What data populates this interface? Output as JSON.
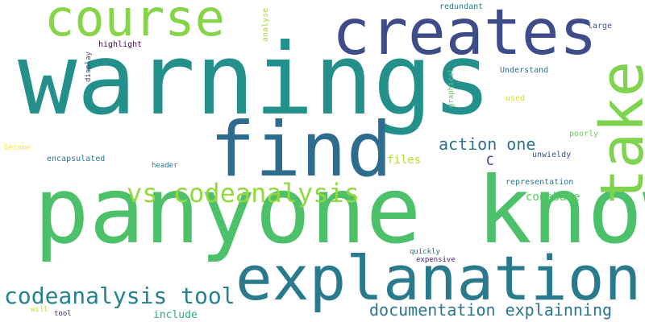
{
  "words": [
    {
      "text": "warnings",
      "color": "#23908b"
    },
    {
      "text": "panyone know",
      "color": "#4cc16a"
    },
    {
      "text": "explanation",
      "color": "#2a7a8e"
    },
    {
      "text": "course",
      "color": "#86d549"
    },
    {
      "text": "creates",
      "color": "#3f4c8a"
    },
    {
      "text": "find",
      "color": "#2e6c8e"
    },
    {
      "text": "take",
      "color": "#7fd34e"
    },
    {
      "text": "vs codeanalysis",
      "color": "#95d840"
    },
    {
      "text": "codeanalysis tool",
      "color": "#26828e"
    },
    {
      "text": "action one",
      "color": "#2d718e"
    },
    {
      "text": "documentation explainning",
      "color": "#2b758e"
    },
    {
      "text": "files",
      "color": "#b5de2b"
    },
    {
      "text": "C",
      "color": "#46337f"
    },
    {
      "text": "codebase",
      "color": "#5ec962"
    },
    {
      "text": "include",
      "color": "#2ab07f"
    },
    {
      "text": "redundant",
      "color": "#26828e"
    },
    {
      "text": "large",
      "color": "#3b528b"
    },
    {
      "text": "highlight",
      "color": "#450457"
    },
    {
      "text": "display",
      "color": "#3e4a89"
    },
    {
      "text": "analyse",
      "color": "#a8db34"
    },
    {
      "text": "graphical",
      "color": "#5ec962"
    },
    {
      "text": "Understand",
      "color": "#2c728e"
    },
    {
      "text": "used",
      "color": "#d8e219"
    },
    {
      "text": "poorly",
      "color": "#6ccd5a"
    },
    {
      "text": "became",
      "color": "#fde725"
    },
    {
      "text": "encapsulated",
      "color": "#2b758e"
    },
    {
      "text": "header",
      "color": "#2a788e"
    },
    {
      "text": "unwieldy",
      "color": "#3b528b"
    },
    {
      "text": "representation",
      "color": "#2a768e"
    },
    {
      "text": "quickly",
      "color": "#2c728e"
    },
    {
      "text": "expensive",
      "color": "#481f70"
    },
    {
      "text": "will",
      "color": "#c0df25"
    },
    {
      "text": "tool",
      "color": "#482475"
    }
  ]
}
